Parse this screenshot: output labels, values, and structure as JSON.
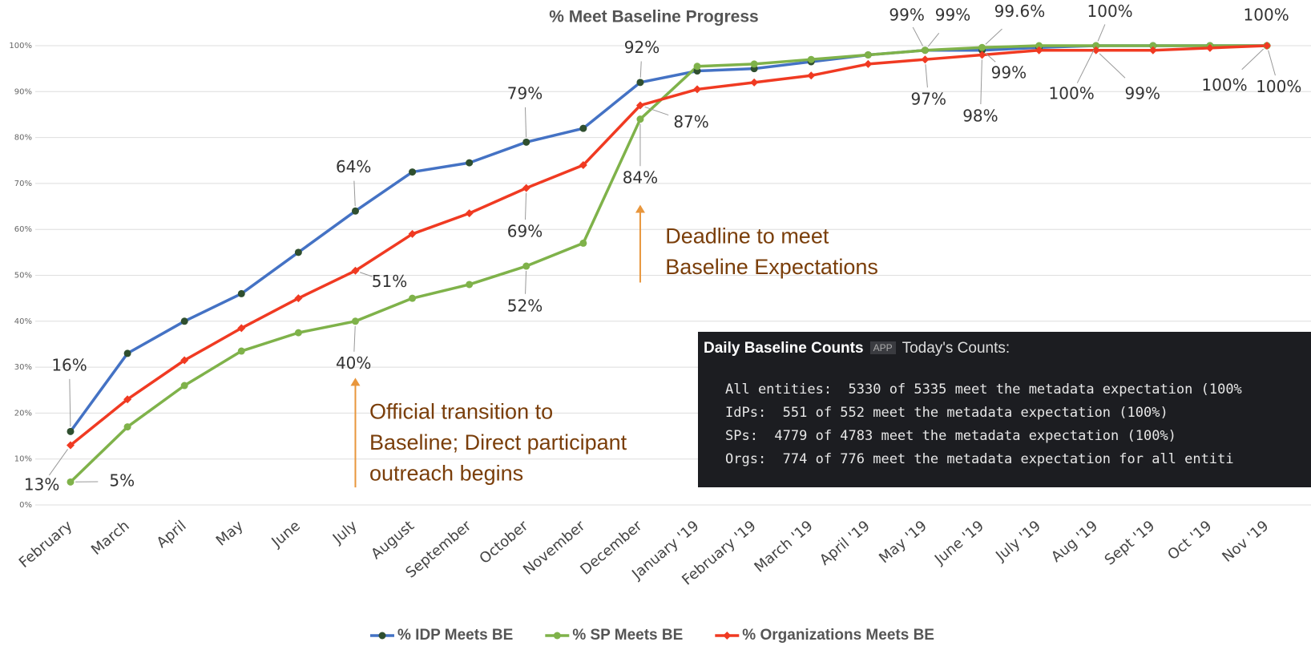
{
  "chart_data": {
    "type": "line",
    "title": "% Meet Baseline Progress",
    "categories": [
      "February",
      "March",
      "April",
      "May",
      "June",
      "July",
      "August",
      "September",
      "October",
      "November",
      "December",
      "January '19",
      "February '19",
      "March '19",
      "April '19",
      "May '19",
      "June '19",
      "July '19",
      "Aug '19",
      "Sept '19",
      "Oct '19",
      "Nov '19"
    ],
    "series": [
      {
        "name": "% IDP Meets BE",
        "color": "#4472c4",
        "marker_color": "#2f4f2f",
        "values": [
          16,
          33,
          40,
          46,
          55,
          64,
          72.5,
          74.5,
          79,
          82,
          92,
          94.5,
          95,
          96.5,
          98,
          99,
          99,
          99.6,
          100,
          100,
          100,
          100
        ],
        "value_labels": [
          "16%",
          null,
          null,
          null,
          null,
          "64%",
          null,
          null,
          "79%",
          null,
          "92%",
          null,
          null,
          null,
          null,
          "99%",
          "99%",
          null,
          "100%",
          null,
          null,
          "100%"
        ]
      },
      {
        "name": "% SP Meets BE",
        "color": "#7fb24a",
        "marker_color": "#7fb24a",
        "values": [
          5,
          17,
          26,
          33.5,
          37.5,
          40,
          45,
          48,
          52,
          57,
          84,
          95.5,
          96,
          97,
          98,
          99,
          99.6,
          100,
          100,
          100,
          100,
          100
        ],
        "value_labels": [
          "5%",
          null,
          null,
          null,
          null,
          "40%",
          null,
          null,
          "52%",
          null,
          "84%",
          null,
          null,
          null,
          null,
          "99%",
          "99.6%",
          null,
          "100%",
          null,
          null,
          "100%"
        ]
      },
      {
        "name": "% Organizations Meets BE",
        "color": "#f03a22",
        "marker_color": "#f03a22",
        "values": [
          13,
          23,
          31.5,
          38.5,
          45,
          51,
          59,
          63.5,
          69,
          74,
          87,
          90.5,
          92,
          93.5,
          96,
          97,
          98,
          99,
          99,
          99,
          99.5,
          100
        ],
        "value_labels": [
          "13%",
          null,
          null,
          null,
          null,
          "51%",
          null,
          null,
          "69%",
          null,
          "87%",
          null,
          null,
          null,
          null,
          "97%",
          "98%",
          null,
          "99%",
          null,
          null,
          "100%"
        ]
      }
    ],
    "ylim": [
      0,
      100
    ],
    "yticks": [
      {
        "value": 0,
        "label": "0%"
      },
      {
        "value": 10,
        "label": "10%"
      },
      {
        "value": 20,
        "label": "20%"
      },
      {
        "value": 30,
        "label": "30%"
      },
      {
        "value": 40,
        "label": "40%"
      },
      {
        "value": 50,
        "label": "50%"
      },
      {
        "value": 60,
        "label": "60%"
      },
      {
        "value": 70,
        "label": "70%"
      },
      {
        "value": 80,
        "label": "80%"
      },
      {
        "value": 90,
        "label": "90%"
      },
      {
        "value": 100,
        "label": "100%"
      }
    ],
    "grid": true,
    "legend": "bottom",
    "annotations": [
      {
        "lines": [
          "Deadline to meet",
          "Baseline Expectations"
        ],
        "category": 10
      },
      {
        "lines": [
          "Official transition to",
          "Baseline; Direct participant",
          "outreach begins"
        ],
        "category": 5
      }
    ],
    "inset": {
      "title": "Daily Baseline Counts",
      "badge": "APP",
      "subtitle": "Today's Counts:",
      "lines": [
        "All entities:  5330 of 5335 meet the metadata expectation (100%",
        "IdPs:  551 of 552 meet the metadata expectation (100%)",
        "SPs:  4779 of 4783 meet the metadata expectation (100%)",
        "Orgs:  774 of 776 meet the metadata expectation for all entiti"
      ]
    }
  }
}
